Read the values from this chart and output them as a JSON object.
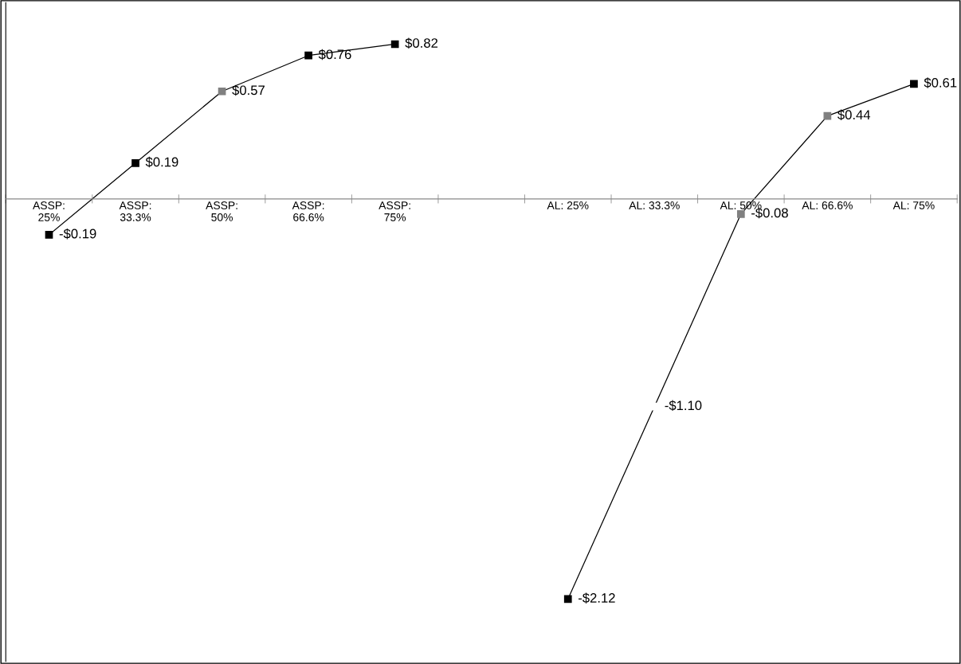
{
  "chart_data": {
    "type": "line",
    "categories": [
      "ASSP:\n25%",
      "ASSP:\n33.3%",
      "ASSP:\n50%",
      "ASSP:\n66.6%",
      "ASSP:\n75%",
      null,
      "AL: 25%",
      "AL: 33.3%",
      "AL: 50%",
      "AL: 66.6%",
      "AL: 75%"
    ],
    "series": [
      {
        "color": "#000000",
        "colors": [
          "#000000",
          "#000000",
          "#808080",
          "#000000",
          "#000000",
          null,
          "#000000",
          "#ffffff",
          "#808080",
          "#808080",
          "#000000"
        ],
        "values": [
          -0.19,
          0.19,
          0.57,
          0.76,
          0.82,
          null,
          -2.12,
          -1.1,
          -0.08,
          0.44,
          0.61
        ],
        "value_labels": [
          "-$0.19",
          "$0.19",
          "$0.57",
          "$0.76",
          "$0.82",
          null,
          "-$2.12",
          "-$1.10",
          "-$0.08",
          "$0.44",
          "$0.61"
        ]
      }
    ],
    "ylim": [
      -2.45,
      1.04
    ],
    "tick_labels": "x",
    "marker": "square",
    "line_style": "solid",
    "grid": false,
    "legend": false
  }
}
